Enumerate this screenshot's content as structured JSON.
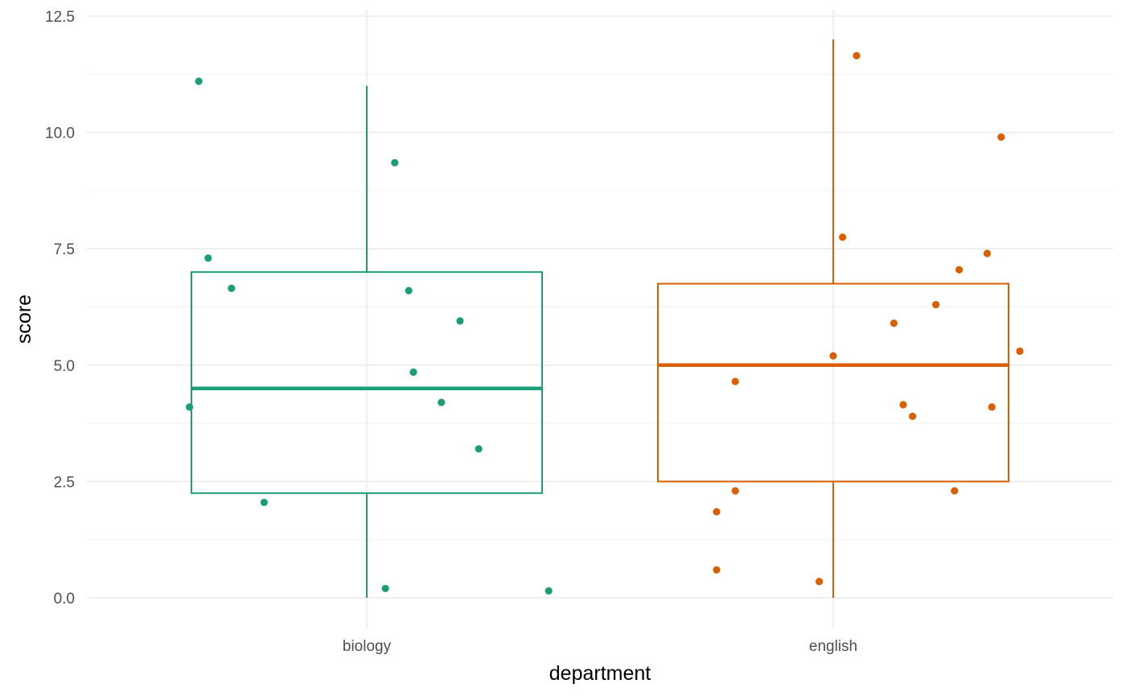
{
  "chart_data": {
    "type": "boxplot",
    "title": "",
    "xlabel": "department",
    "ylabel": "score",
    "categories": [
      "biology",
      "english"
    ],
    "ylim": [
      -0.4,
      12.5
    ],
    "yticks": [
      0.0,
      2.5,
      5.0,
      7.5,
      10.0,
      12.5
    ],
    "ytick_labels": [
      "0.0",
      "2.5",
      "5.0",
      "7.5",
      "10.0",
      "12.5"
    ],
    "grid": true,
    "legend": "none",
    "colors": {
      "biology": "#1b9e77",
      "english": "#d95f02"
    },
    "boxes": [
      {
        "category": "biology",
        "min": 0.0,
        "q1": 2.25,
        "median": 4.5,
        "q3": 7.0,
        "max": 11.0
      },
      {
        "category": "english",
        "min": 0.0,
        "q1": 2.5,
        "median": 5.0,
        "q3": 6.75,
        "max": 12.0
      }
    ],
    "points": [
      {
        "category": "biology",
        "jitter": -0.38,
        "y": 4.1
      },
      {
        "category": "biology",
        "jitter": -0.36,
        "y": 11.1
      },
      {
        "category": "biology",
        "jitter": -0.34,
        "y": 7.3
      },
      {
        "category": "biology",
        "jitter": -0.29,
        "y": 6.65
      },
      {
        "category": "biology",
        "jitter": -0.22,
        "y": 2.05
      },
      {
        "category": "biology",
        "jitter": 0.04,
        "y": 0.2
      },
      {
        "category": "biology",
        "jitter": 0.06,
        "y": 9.35
      },
      {
        "category": "biology",
        "jitter": 0.09,
        "y": 6.6
      },
      {
        "category": "biology",
        "jitter": 0.1,
        "y": 4.85
      },
      {
        "category": "biology",
        "jitter": 0.16,
        "y": 4.2
      },
      {
        "category": "biology",
        "jitter": 0.2,
        "y": 5.95
      },
      {
        "category": "biology",
        "jitter": 0.24,
        "y": 3.2
      },
      {
        "category": "biology",
        "jitter": 0.39,
        "y": 0.15
      },
      {
        "category": "english",
        "jitter": -0.25,
        "y": 0.6
      },
      {
        "category": "english",
        "jitter": -0.25,
        "y": 1.85
      },
      {
        "category": "english",
        "jitter": -0.21,
        "y": 2.3
      },
      {
        "category": "english",
        "jitter": -0.21,
        "y": 4.65
      },
      {
        "category": "english",
        "jitter": -0.03,
        "y": 0.35
      },
      {
        "category": "english",
        "jitter": 0.0,
        "y": 5.2
      },
      {
        "category": "english",
        "jitter": 0.02,
        "y": 7.75
      },
      {
        "category": "english",
        "jitter": 0.05,
        "y": 11.65
      },
      {
        "category": "english",
        "jitter": 0.13,
        "y": 5.9
      },
      {
        "category": "english",
        "jitter": 0.15,
        "y": 4.15
      },
      {
        "category": "english",
        "jitter": 0.17,
        "y": 3.9
      },
      {
        "category": "english",
        "jitter": 0.22,
        "y": 6.3
      },
      {
        "category": "english",
        "jitter": 0.26,
        "y": 2.3
      },
      {
        "category": "english",
        "jitter": 0.27,
        "y": 7.05
      },
      {
        "category": "english",
        "jitter": 0.33,
        "y": 7.4
      },
      {
        "category": "english",
        "jitter": 0.34,
        "y": 4.1
      },
      {
        "category": "english",
        "jitter": 0.36,
        "y": 9.9
      },
      {
        "category": "english",
        "jitter": 0.4,
        "y": 5.3
      }
    ]
  }
}
